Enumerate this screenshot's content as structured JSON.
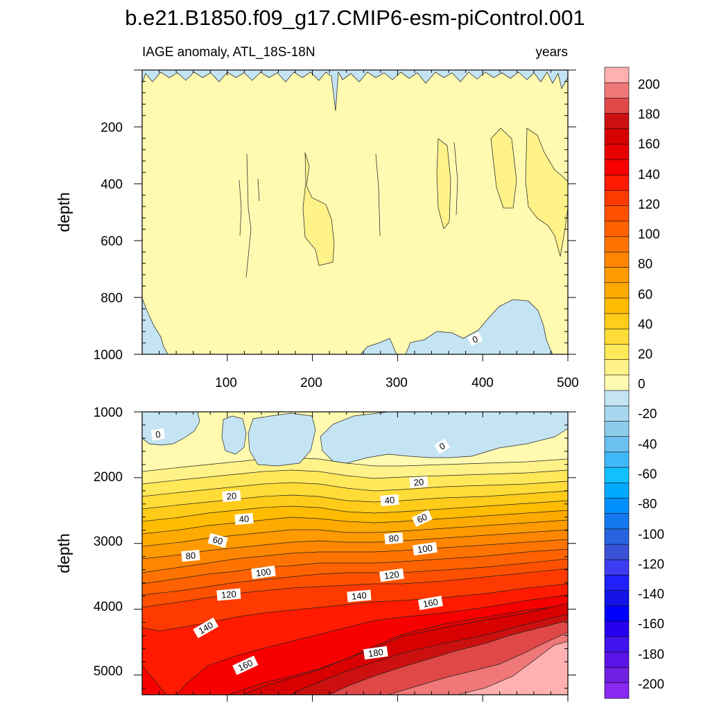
{
  "chart_data": {
    "type": "contour",
    "title": "b.e21.B1850.f09_g17.CMIP6-esm-piControl.001",
    "variable": "IAGE anomaly, ATL_18S-18N",
    "units": "years",
    "x": {
      "range": [
        0,
        500
      ],
      "ticks": [
        100,
        200,
        300,
        400,
        500
      ],
      "label": ""
    },
    "panels": [
      {
        "name": "upper",
        "ylabel": "depth",
        "ylim": [
          0,
          1000
        ],
        "yticks": [
          200,
          400,
          600,
          800,
          1000
        ],
        "contour_labels": [
          "0"
        ],
        "description": "Near-zero anomaly (0 to 10 yr) throughout; small negative patches near surface and along 1000 m; weak positive (10-20 yr) patches at ~200-680 m."
      },
      {
        "name": "lower",
        "ylabel": "depth",
        "ylim": [
          1000,
          5300
        ],
        "yticks": [
          1000,
          2000,
          3000,
          4000,
          5000
        ],
        "contour_labels": [
          "0",
          "0",
          "20",
          "20",
          "40",
          "40",
          "60",
          "60",
          "80",
          "80",
          "100",
          "100",
          "120",
          "120",
          "140",
          "140",
          "160",
          "160",
          "180"
        ],
        "description": "Anomaly increases with depth from ~0 at 1000-1800 m to >200 yr near 5000 m; isolines deepen mid-record (~250) and shoal toward 500."
      }
    ],
    "colorbar": {
      "levels": [
        -210,
        -200,
        -190,
        -180,
        -170,
        -160,
        -150,
        -140,
        -130,
        -120,
        -110,
        -100,
        -90,
        -80,
        -70,
        -60,
        -50,
        -40,
        -30,
        -20,
        -10,
        0,
        10,
        20,
        30,
        40,
        50,
        60,
        70,
        80,
        90,
        100,
        110,
        120,
        130,
        140,
        150,
        160,
        170,
        180,
        190,
        200,
        210
      ],
      "labels": [
        "200",
        "180",
        "160",
        "140",
        "120",
        "100",
        "80",
        "60",
        "40",
        "20",
        "0",
        "-20",
        "-40",
        "-60",
        "-80",
        "-100",
        "-120",
        "-140",
        "-160",
        "-180",
        "-200"
      ],
      "colors_top_to_bottom": [
        "#ffb0b0",
        "#f07878",
        "#e04848",
        "#cc1010",
        "#d80000",
        "#e80000",
        "#f80000",
        "#ff1a00",
        "#ff3a00",
        "#ff5000",
        "#ff6200",
        "#ff7400",
        "#ff8600",
        "#ff9a00",
        "#ffaa00",
        "#ffbc00",
        "#ffcc1a",
        "#ffdc38",
        "#ffe85a",
        "#fff288",
        "#fffab0",
        "#c4e4f4",
        "#a8d8f0",
        "#8ccdec",
        "#6cc0f0",
        "#40b8f8",
        "#10c0ff",
        "#00aaff",
        "#0090ff",
        "#1478f0",
        "#2864e0",
        "#3a52d8",
        "#3c3cf0",
        "#2020ff",
        "#1414e8",
        "#0000ff",
        "#2800f0",
        "#4414f0",
        "#5a14e8",
        "#7020e0",
        "#8828f0"
      ]
    }
  }
}
